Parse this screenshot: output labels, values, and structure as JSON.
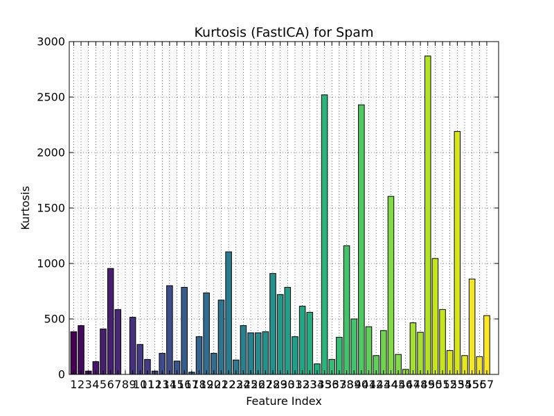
{
  "chart_data": {
    "type": "bar",
    "title": "Kurtosis (FastICA) for Spam",
    "xlabel": "Feature Index",
    "ylabel": "Kurtosis",
    "ylim": [
      0,
      3000
    ],
    "xlim": [
      0.4,
      58.6
    ],
    "yticks": [
      0,
      500,
      1000,
      1500,
      2000,
      2500,
      3000
    ],
    "x": [
      1,
      2,
      3,
      4,
      5,
      6,
      7,
      8,
      9,
      10,
      11,
      12,
      13,
      14,
      15,
      16,
      17,
      18,
      19,
      20,
      21,
      22,
      23,
      24,
      25,
      26,
      27,
      28,
      29,
      30,
      31,
      32,
      33,
      34,
      35,
      36,
      37,
      38,
      39,
      40,
      41,
      42,
      43,
      44,
      45,
      46,
      47,
      48,
      49,
      50,
      51,
      52,
      53,
      54,
      55,
      56,
      57
    ],
    "values": [
      385,
      440,
      30,
      115,
      410,
      955,
      585,
      0,
      515,
      270,
      135,
      30,
      190,
      800,
      120,
      785,
      20,
      340,
      735,
      190,
      670,
      1105,
      130,
      440,
      375,
      375,
      385,
      910,
      720,
      785,
      340,
      615,
      560,
      95,
      2520,
      135,
      335,
      1160,
      500,
      2430,
      430,
      170,
      395,
      1605,
      180,
      45,
      465,
      380,
      2870,
      1045,
      585,
      215,
      2190,
      170,
      860,
      160,
      530
    ],
    "grid": "dotted",
    "colormap": "viridis",
    "colors": [
      "#440154",
      "#440a5e",
      "#461567",
      "#471f6f",
      "#472876",
      "#46317e",
      "#453a84",
      "#424287",
      "#3e4c8a",
      "#3b548c",
      "#385d8d",
      "#35648e",
      "#326c8e",
      "#2f738e",
      "#2d7a8e",
      "#2a818e",
      "#28898e",
      "#26908d",
      "#24978b",
      "#229f89",
      "#21a685",
      "#24ad81",
      "#2bb57c",
      "#35bc74",
      "#42c36c",
      "#51c963",
      "#61ce5a",
      "#71d350",
      "#82d947",
      "#93dc3c",
      "#a4df31",
      "#b5e227",
      "#c6e51f",
      "#d7e61c",
      "#e6e81f",
      "#f2e628",
      "#fde725"
    ]
  }
}
